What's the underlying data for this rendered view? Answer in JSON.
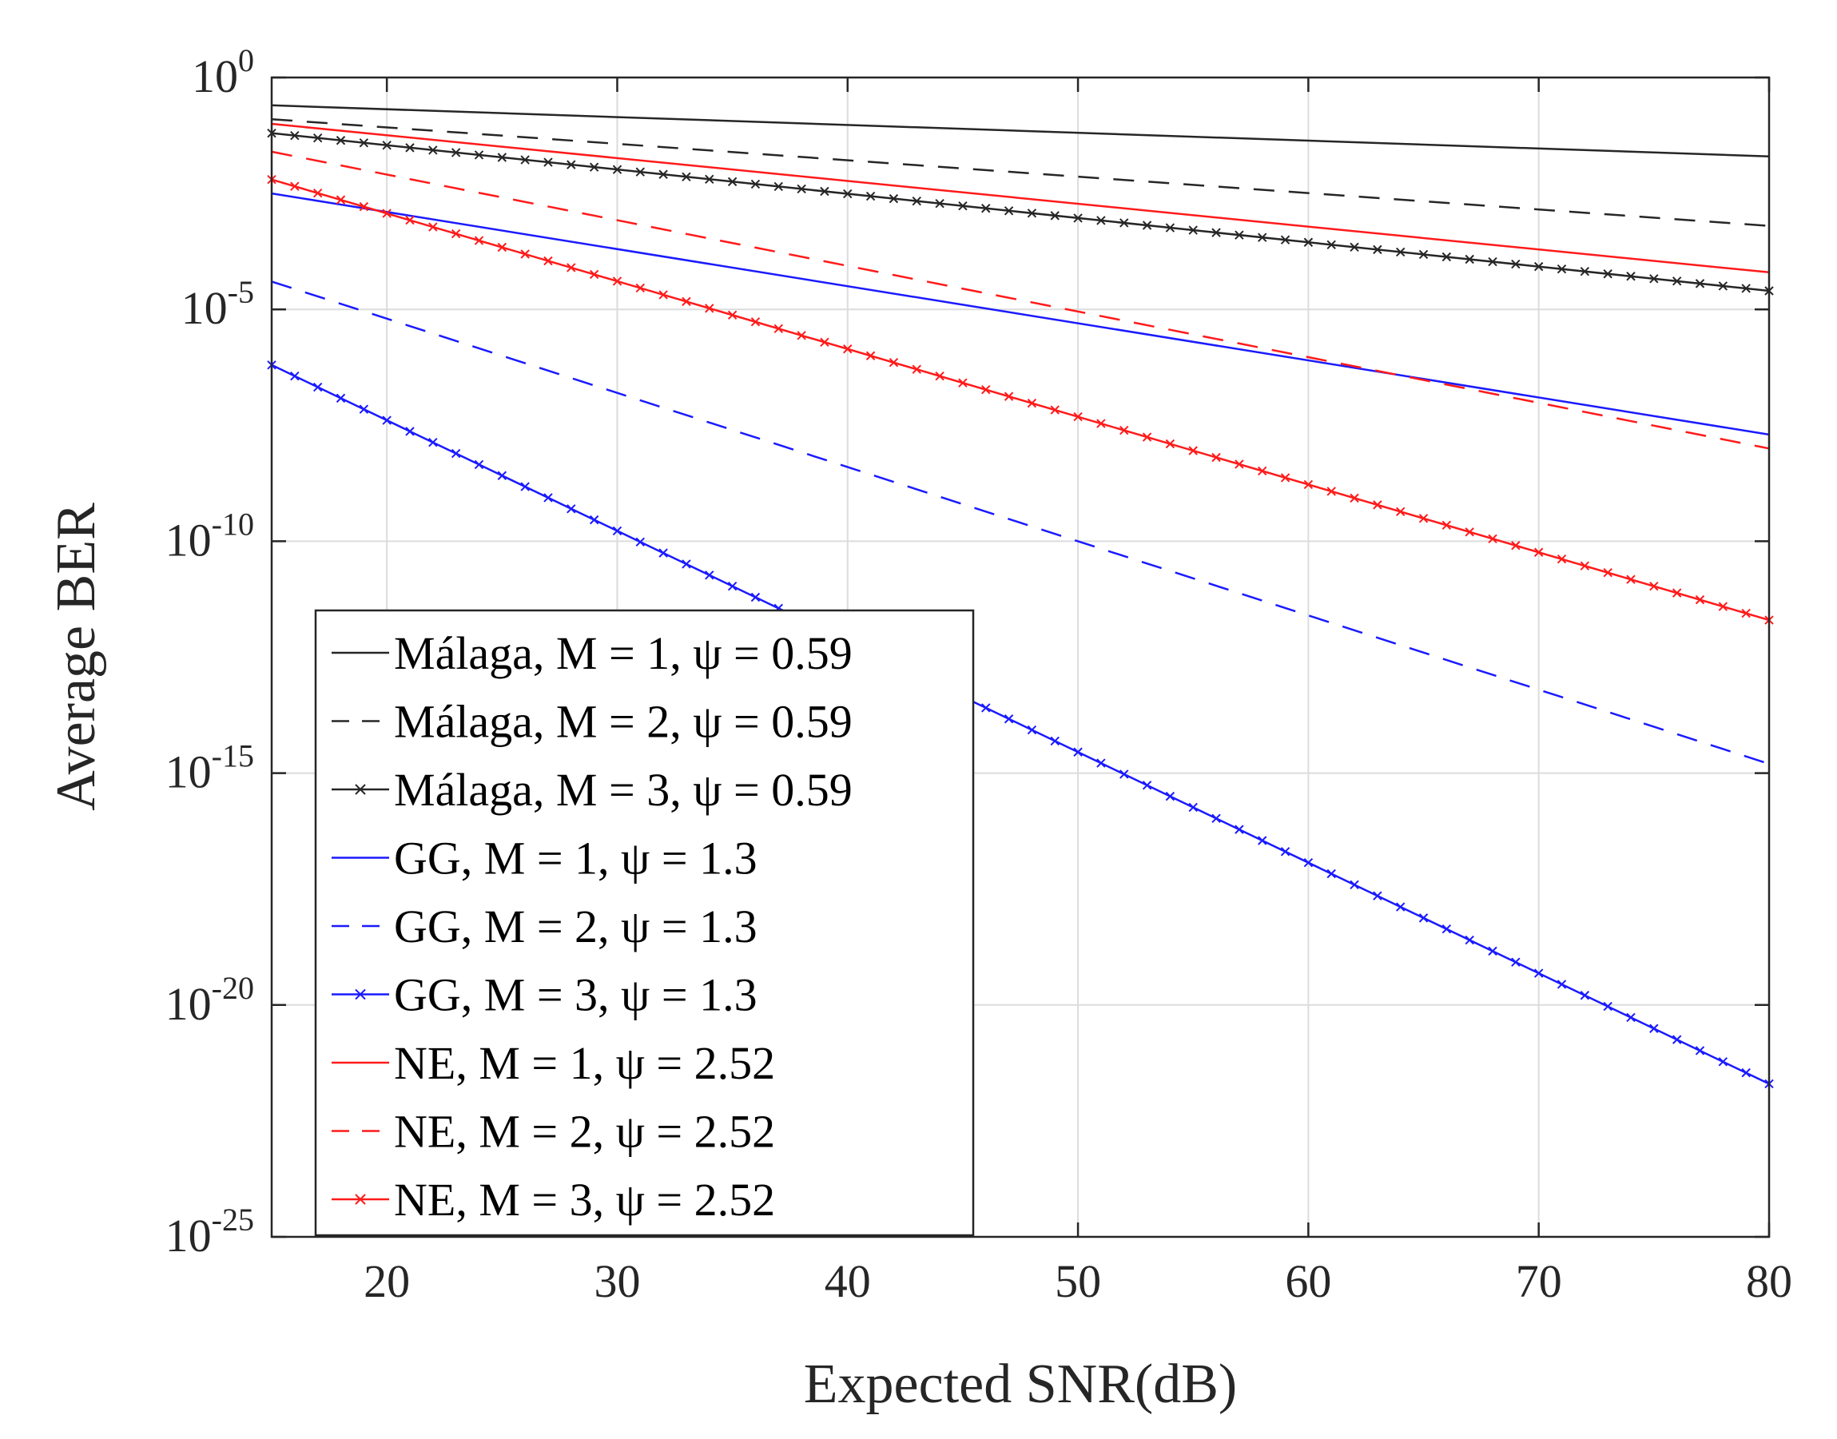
{
  "chart_data": {
    "type": "line",
    "title": "",
    "xlabel": "Expected SNR(dB)",
    "ylabel": "Average BER",
    "xlim": [
      15,
      80
    ],
    "ylim_log10": [
      -25,
      0
    ],
    "yscale": "log",
    "grid": true,
    "xticks": [
      20,
      30,
      40,
      50,
      60,
      70,
      80
    ],
    "yticks": [
      {
        "base": "10",
        "exp": "0",
        "log": 0
      },
      {
        "base": "10",
        "exp": "-5",
        "log": -5
      },
      {
        "base": "10",
        "exp": "-10",
        "log": -10
      },
      {
        "base": "10",
        "exp": "-15",
        "log": -15
      },
      {
        "base": "10",
        "exp": "-20",
        "log": -20
      },
      {
        "base": "10",
        "exp": "-25",
        "log": -25
      }
    ],
    "legend_position": "lower-left",
    "series": [
      {
        "name": "Málaga, M = 1, ψ = 0.59",
        "color": "#262626",
        "dash": "solid",
        "marker": "none",
        "x": [
          15,
          80
        ],
        "log10_ber": [
          -0.6,
          -1.7
        ]
      },
      {
        "name": "Málaga, M = 2, ψ = 0.59",
        "color": "#262626",
        "dash": "dashed",
        "marker": "none",
        "x": [
          15,
          80
        ],
        "log10_ber": [
          -0.9,
          -3.2
        ]
      },
      {
        "name": "Málaga, M = 3, ψ = 0.59",
        "color": "#262626",
        "dash": "solid",
        "marker": "x",
        "x": [
          15,
          80
        ],
        "log10_ber": [
          -1.2,
          -4.6
        ]
      },
      {
        "name": "GG, M = 1, ψ = 1.3",
        "color": "#1a1aff",
        "dash": "solid",
        "marker": "none",
        "x": [
          15,
          80
        ],
        "log10_ber": [
          -2.5,
          -7.7
        ]
      },
      {
        "name": "GG, M = 2, ψ = 1.3",
        "color": "#1a1aff",
        "dash": "dashed",
        "marker": "none",
        "x": [
          15,
          80
        ],
        "log10_ber": [
          -4.4,
          -14.8
        ]
      },
      {
        "name": "GG, M = 3, ψ = 1.3",
        "color": "#1a1aff",
        "dash": "solid",
        "marker": "x",
        "x": [
          15,
          80
        ],
        "log10_ber": [
          -6.2,
          -21.7
        ]
      },
      {
        "name": "NE, M = 1, ψ = 2.52",
        "color": "#ff1a1a",
        "dash": "solid",
        "marker": "none",
        "x": [
          15,
          80
        ],
        "log10_ber": [
          -1.0,
          -4.2
        ]
      },
      {
        "name": "NE, M = 2, ψ = 2.52",
        "color": "#ff1a1a",
        "dash": "dashed",
        "marker": "none",
        "x": [
          15,
          80
        ],
        "log10_ber": [
          -1.6,
          -8.0
        ]
      },
      {
        "name": "NE, M = 3, ψ = 2.52",
        "color": "#ff1a1a",
        "dash": "solid",
        "marker": "x",
        "x": [
          15,
          80
        ],
        "log10_ber": [
          -2.2,
          -11.7
        ]
      }
    ]
  }
}
